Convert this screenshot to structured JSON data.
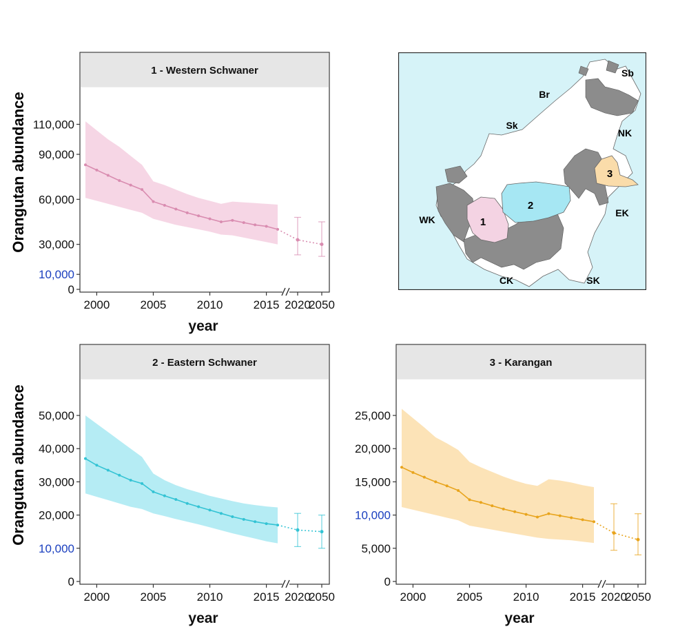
{
  "y_axis_label": "Orangutan abundance",
  "x_axis_label": "year",
  "colors": {
    "panel_header_bg": "#e6e6e6",
    "highlight_tick": "#1a3fbf",
    "ocean": "#d6f3f8",
    "map_gray": "#8c8c8c",
    "region1": "#f4d3e3",
    "region2": "#a6e7f3",
    "region3": "#fadcaa"
  },
  "chart_data": [
    {
      "type": "line",
      "title": "1 - Western Schwaner",
      "color": "#d98cb0",
      "band_color": "#f5cfe0",
      "xlabel": "year",
      "ylabel": "Orangutan abundance",
      "x_tick_labels": [
        "2000",
        "2005",
        "2010",
        "2015",
        "2020",
        "2050"
      ],
      "y_ticks": [
        0,
        10000,
        30000,
        60000,
        90000,
        110000
      ],
      "y_tick_labels": [
        "0",
        "10,000",
        "30,000",
        "60,000",
        "90,000",
        "110,000"
      ],
      "highlight_y_tick": "10,000",
      "ylim": [
        0,
        135000
      ],
      "series": [
        {
          "x": [
            1999,
            2000,
            2001,
            2002,
            2003,
            2004,
            2005,
            2006,
            2007,
            2008,
            2009,
            2010,
            2011,
            2012,
            2013,
            2014,
            2015,
            2016
          ],
          "values": [
            83000,
            79500,
            76000,
            72500,
            69500,
            66500,
            58500,
            56000,
            53500,
            51000,
            49000,
            47000,
            45000,
            46000,
            44500,
            43000,
            42000,
            40000
          ],
          "lower": [
            61000,
            59000,
            57000,
            55000,
            53000,
            51000,
            47000,
            45000,
            43000,
            41500,
            40000,
            38500,
            36500,
            36000,
            34500,
            33000,
            31500,
            30000
          ],
          "upper": [
            112000,
            106000,
            100000,
            95000,
            89000,
            83000,
            72000,
            69500,
            66500,
            63500,
            61000,
            59000,
            57000,
            58500,
            58000,
            57500,
            57000,
            56500
          ]
        }
      ],
      "projections": [
        {
          "x": "2020",
          "value": 33000,
          "lower": 23000,
          "upper": 48000
        },
        {
          "x": "2050",
          "value": 30000,
          "lower": 22000,
          "upper": 45000
        }
      ]
    },
    {
      "type": "line",
      "title": "2 - Eastern Schwaner",
      "color": "#33c3d4",
      "band_color": "#a8e9f2",
      "xlabel": "year",
      "ylabel": "Orangutan abundance",
      "x_tick_labels": [
        "2000",
        "2005",
        "2010",
        "2015",
        "2020",
        "2050"
      ],
      "y_ticks": [
        0,
        10000,
        20000,
        30000,
        40000,
        50000
      ],
      "y_tick_labels": [
        "0",
        "10,000",
        "20,000",
        "30,000",
        "40,000",
        "50,000"
      ],
      "highlight_y_tick": "10,000",
      "ylim": [
        0,
        61000
      ],
      "series": [
        {
          "x": [
            1999,
            2000,
            2001,
            2002,
            2003,
            2004,
            2005,
            2006,
            2007,
            2008,
            2009,
            2010,
            2011,
            2012,
            2013,
            2014,
            2015,
            2016
          ],
          "values": [
            37000,
            35000,
            33500,
            32000,
            30500,
            29500,
            27000,
            25800,
            24700,
            23500,
            22500,
            21500,
            20500,
            19500,
            18700,
            18000,
            17400,
            17000
          ],
          "lower": [
            26500,
            25500,
            24500,
            23500,
            22500,
            21800,
            20500,
            19700,
            18800,
            18000,
            17200,
            16300,
            15400,
            14500,
            13700,
            12900,
            12100,
            11500
          ],
          "upper": [
            50000,
            47500,
            45000,
            42500,
            40000,
            37500,
            32500,
            30500,
            29000,
            27800,
            26800,
            25800,
            25000,
            24200,
            23500,
            23000,
            22600,
            22300
          ]
        }
      ],
      "projections": [
        {
          "x": "2020",
          "value": 15500,
          "lower": 10500,
          "upper": 20500
        },
        {
          "x": "2050",
          "value": 15000,
          "lower": 10000,
          "upper": 20000
        }
      ]
    },
    {
      "type": "line",
      "title": "3 - Karangan",
      "color": "#e8a41c",
      "band_color": "#fbdeaa",
      "xlabel": "year",
      "ylabel": "",
      "x_tick_labels": [
        "2000",
        "2005",
        "2010",
        "2015",
        "2020",
        "2050"
      ],
      "y_ticks": [
        0,
        5000,
        10000,
        15000,
        20000,
        25000
      ],
      "y_tick_labels": [
        "0",
        "5,000",
        "10,000",
        "15,000",
        "20,000",
        "25,000"
      ],
      "highlight_y_tick": "10,000",
      "ylim": [
        0,
        30500
      ],
      "series": [
        {
          "x": [
            1999,
            2000,
            2001,
            2002,
            2003,
            2004,
            2005,
            2006,
            2007,
            2008,
            2009,
            2010,
            2011,
            2012,
            2013,
            2014,
            2015,
            2016
          ],
          "values": [
            17200,
            16400,
            15700,
            15000,
            14400,
            13700,
            12300,
            11900,
            11400,
            10900,
            10500,
            10100,
            9700,
            10200,
            9900,
            9600,
            9300,
            9000
          ],
          "lower": [
            11200,
            10800,
            10400,
            10000,
            9600,
            9200,
            8400,
            8100,
            7800,
            7500,
            7200,
            6900,
            6600,
            6400,
            6300,
            6200,
            6000,
            5800
          ],
          "upper": [
            26000,
            24600,
            23200,
            21700,
            20800,
            19800,
            18000,
            17200,
            16500,
            15800,
            15200,
            14700,
            14400,
            15400,
            15200,
            14900,
            14500,
            14200
          ]
        }
      ],
      "projections": [
        {
          "x": "2020",
          "value": 7300,
          "lower": 4700,
          "upper": 11700
        },
        {
          "x": "2050",
          "value": 6300,
          "lower": 4000,
          "upper": 10200
        }
      ]
    }
  ],
  "map": {
    "region_labels": [
      "1",
      "2",
      "3"
    ],
    "area_labels": [
      "Sb",
      "Br",
      "Sk",
      "NK",
      "EK",
      "WK",
      "CK",
      "SK"
    ]
  }
}
